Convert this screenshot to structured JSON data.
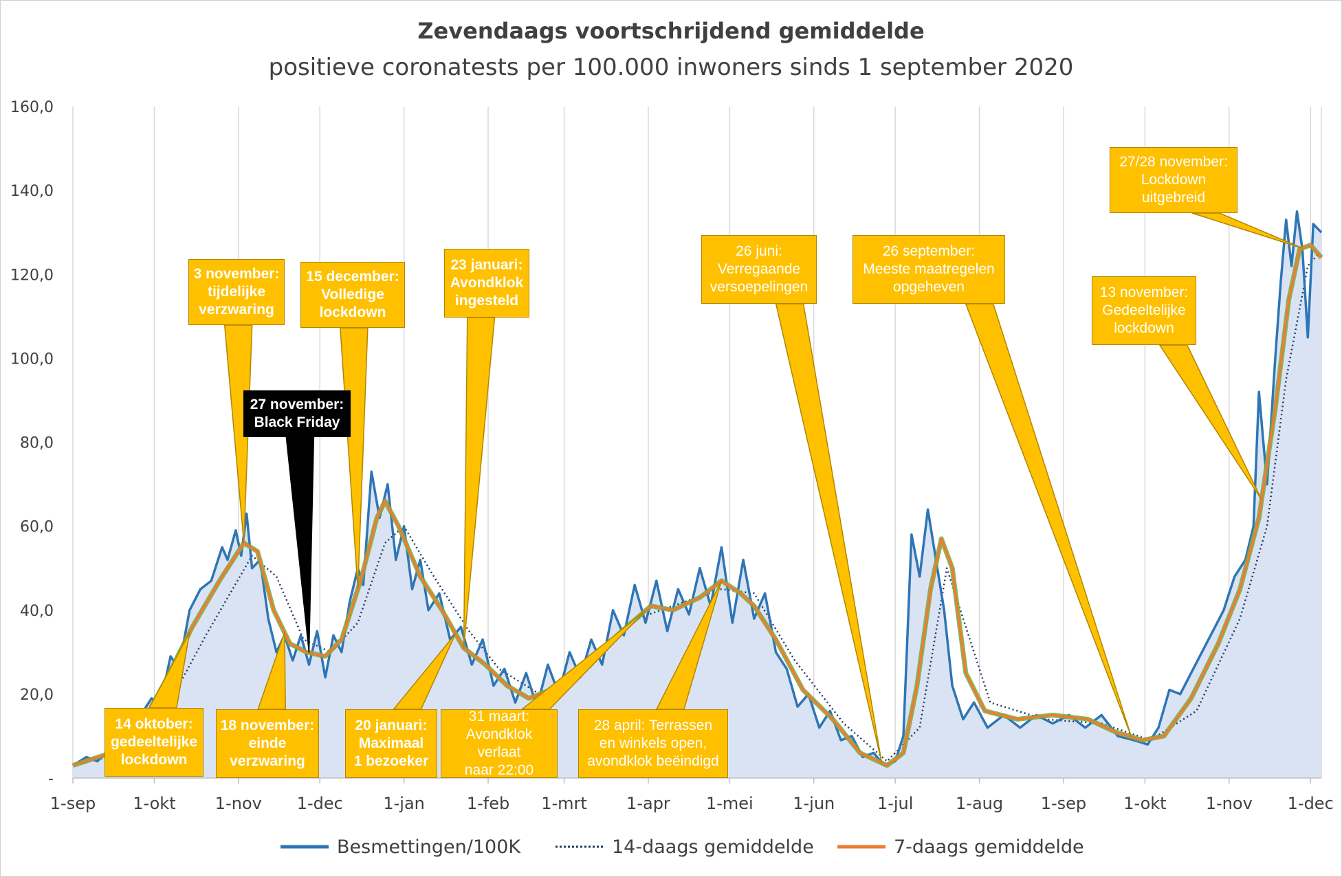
{
  "title": "Zevendaags voortschrijdend gemiddelde",
  "subtitle": "positieve coronatests per 100.000 inwoners sinds 1 september 2020",
  "colors": {
    "daily": "#2e75b6",
    "avg14": "#203864",
    "avg7": "#ed7d31",
    "avg7_outline": "#70ad47",
    "area": "#dae3f3",
    "callout_fill": "#ffc000",
    "callout_stroke": "#b08600",
    "black_callout": "#000000",
    "grid": "#d9d9d9"
  },
  "legend": {
    "daily": "Besmettingen/100K",
    "avg14": "14-daags gemiddelde",
    "avg7": "7-daags gemiddelde"
  },
  "callouts": [
    {
      "id": "c-14okt",
      "text": "14 oktober:\ngedeeltelijke\nlockdown",
      "bold": true
    },
    {
      "id": "c-3nov",
      "text": "3 november:\ntijdelijke\nverzwaring",
      "bold": true
    },
    {
      "id": "c-18nov",
      "text": "18 november:\neinde\nverzwaring",
      "bold": true
    },
    {
      "id": "c-27nov",
      "text": "27 november:\nBlack Friday",
      "bold": true
    },
    {
      "id": "c-15dec",
      "text": "15 december:\nVolledige\nlockdown",
      "bold": true
    },
    {
      "id": "c-20jan",
      "text": "20 januari:\nMaximaal\n1 bezoeker",
      "bold": true
    },
    {
      "id": "c-23jan",
      "text": "23 januari:\nAvondklok\ningesteld",
      "bold": true
    },
    {
      "id": "c-31mrt",
      "text": "31 maart:\nAvondklok verlaat\nnaar 22:00",
      "bold": false
    },
    {
      "id": "c-28apr",
      "text": "28 april: Terrassen\nen winkels open,\navondklok beëindigd",
      "bold": false
    },
    {
      "id": "c-26jun",
      "text": "26 juni:\nVerregaande\nversoepelingen",
      "bold": false
    },
    {
      "id": "c-26sep",
      "text": "26 september:\nMeeste maatregelen\nopgeheven",
      "bold": false
    },
    {
      "id": "c-13nov21",
      "text": "13 november:\nGedeeltelijke\nlockdown",
      "bold": false
    },
    {
      "id": "c-2728nov",
      "text": "27/28 november:\nLockdown\nuitgebreid",
      "bold": false
    }
  ],
  "chart_data": {
    "type": "line",
    "title": "Zevendaags voortschrijdend gemiddelde",
    "subtitle": "positieve coronatests per 100.000 inwoners sinds 1 september 2020",
    "xlabel": "",
    "ylabel": "",
    "x_tick_labels": [
      "1-sep",
      "1-okt",
      "1-nov",
      "1-dec",
      "1-jan",
      "1-feb",
      "1-mrt",
      "1-apr",
      "1-mei",
      "1-jun",
      "1-jul",
      "1-aug",
      "1-sep",
      "1-okt",
      "1-nov",
      "1-dec"
    ],
    "x_tick_dates": [
      "2020-09-01",
      "2020-10-01",
      "2020-11-01",
      "2020-12-01",
      "2021-01-01",
      "2021-02-01",
      "2021-03-01",
      "2021-04-01",
      "2021-05-01",
      "2021-06-01",
      "2021-07-01",
      "2021-08-01",
      "2021-09-01",
      "2021-10-01",
      "2021-11-01",
      "2021-12-01"
    ],
    "y_tick_labels": [
      "-",
      "20,0",
      "40,0",
      "60,0",
      "80,0",
      "100,0",
      "120,0",
      "140,0",
      "160,0"
    ],
    "ylim": [
      0,
      160
    ],
    "xlim": [
      "2020-09-01",
      "2021-12-05"
    ],
    "grid": "vertical",
    "legend_position": "bottom",
    "series": [
      {
        "name": "7-daags gemiddelde",
        "points": [
          [
            "2020-09-01",
            3
          ],
          [
            "2020-09-15",
            6
          ],
          [
            "2020-09-25",
            11
          ],
          [
            "2020-10-05",
            23
          ],
          [
            "2020-10-15",
            36
          ],
          [
            "2020-10-25",
            47
          ],
          [
            "2020-11-03",
            56
          ],
          [
            "2020-11-08",
            54
          ],
          [
            "2020-11-14",
            40
          ],
          [
            "2020-11-20",
            32
          ],
          [
            "2020-11-26",
            30
          ],
          [
            "2020-12-03",
            29
          ],
          [
            "2020-12-09",
            33
          ],
          [
            "2020-12-16",
            47
          ],
          [
            "2020-12-22",
            62
          ],
          [
            "2020-12-25",
            66
          ],
          [
            "2020-12-30",
            60
          ],
          [
            "2021-01-07",
            48
          ],
          [
            "2021-01-15",
            40
          ],
          [
            "2021-01-23",
            31
          ],
          [
            "2021-01-31",
            27
          ],
          [
            "2021-02-08",
            22
          ],
          [
            "2021-02-16",
            19
          ],
          [
            "2021-02-28",
            22
          ],
          [
            "2021-03-12",
            29
          ],
          [
            "2021-03-24",
            36
          ],
          [
            "2021-04-02",
            41
          ],
          [
            "2021-04-10",
            40
          ],
          [
            "2021-04-20",
            43
          ],
          [
            "2021-04-28",
            47
          ],
          [
            "2021-05-05",
            44
          ],
          [
            "2021-05-10",
            41
          ],
          [
            "2021-05-18",
            33
          ],
          [
            "2021-05-28",
            21
          ],
          [
            "2021-06-08",
            14
          ],
          [
            "2021-06-18",
            6
          ],
          [
            "2021-06-28",
            3
          ],
          [
            "2021-07-04",
            6
          ],
          [
            "2021-07-09",
            22
          ],
          [
            "2021-07-14",
            45
          ],
          [
            "2021-07-18",
            57
          ],
          [
            "2021-07-22",
            50
          ],
          [
            "2021-07-27",
            25
          ],
          [
            "2021-08-03",
            16
          ],
          [
            "2021-08-15",
            14
          ],
          [
            "2021-08-28",
            15
          ],
          [
            "2021-09-10",
            14
          ],
          [
            "2021-09-20",
            11
          ],
          [
            "2021-09-30",
            9
          ],
          [
            "2021-10-08",
            10
          ],
          [
            "2021-10-18",
            19
          ],
          [
            "2021-10-28",
            32
          ],
          [
            "2021-11-05",
            45
          ],
          [
            "2021-11-12",
            62
          ],
          [
            "2021-11-18",
            88
          ],
          [
            "2021-11-23",
            114
          ],
          [
            "2021-11-27",
            126
          ],
          [
            "2021-12-01",
            127
          ],
          [
            "2021-12-05",
            124
          ]
        ]
      },
      {
        "name": "14-daags gemiddelde",
        "points": [
          [
            "2020-09-01",
            3
          ],
          [
            "2020-09-20",
            6
          ],
          [
            "2020-10-05",
            16
          ],
          [
            "2020-10-20",
            34
          ],
          [
            "2020-11-06",
            53
          ],
          [
            "2020-11-15",
            48
          ],
          [
            "2020-11-25",
            33
          ],
          [
            "2020-12-05",
            30
          ],
          [
            "2020-12-15",
            37
          ],
          [
            "2020-12-25",
            56
          ],
          [
            "2021-01-01",
            60
          ],
          [
            "2021-01-12",
            48
          ],
          [
            "2021-01-25",
            35
          ],
          [
            "2021-02-05",
            26
          ],
          [
            "2021-02-20",
            20
          ],
          [
            "2021-03-10",
            26
          ],
          [
            "2021-03-28",
            38
          ],
          [
            "2021-04-10",
            41
          ],
          [
            "2021-04-28",
            45
          ],
          [
            "2021-05-10",
            44
          ],
          [
            "2021-05-25",
            28
          ],
          [
            "2021-06-12",
            13
          ],
          [
            "2021-06-28",
            4
          ],
          [
            "2021-07-10",
            12
          ],
          [
            "2021-07-20",
            50
          ],
          [
            "2021-07-26",
            38
          ],
          [
            "2021-08-05",
            18
          ],
          [
            "2021-08-25",
            14
          ],
          [
            "2021-09-15",
            13
          ],
          [
            "2021-10-03",
            9
          ],
          [
            "2021-10-20",
            16
          ],
          [
            "2021-11-05",
            38
          ],
          [
            "2021-11-15",
            60
          ],
          [
            "2021-11-22",
            95
          ],
          [
            "2021-11-30",
            122
          ],
          [
            "2021-12-04",
            125
          ]
        ]
      },
      {
        "name": "Besmettingen/100K",
        "points": [
          [
            "2020-09-01",
            3
          ],
          [
            "2020-09-06",
            5
          ],
          [
            "2020-09-10",
            4
          ],
          [
            "2020-09-15",
            7
          ],
          [
            "2020-09-20",
            9
          ],
          [
            "2020-09-25",
            14
          ],
          [
            "2020-09-30",
            19
          ],
          [
            "2020-10-03",
            17
          ],
          [
            "2020-10-07",
            29
          ],
          [
            "2020-10-10",
            26
          ],
          [
            "2020-10-14",
            40
          ],
          [
            "2020-10-18",
            45
          ],
          [
            "2020-10-22",
            47
          ],
          [
            "2020-10-26",
            55
          ],
          [
            "2020-10-28",
            52
          ],
          [
            "2020-10-31",
            59
          ],
          [
            "2020-11-02",
            53
          ],
          [
            "2020-11-04",
            63
          ],
          [
            "2020-11-06",
            50
          ],
          [
            "2020-11-09",
            52
          ],
          [
            "2020-11-12",
            38
          ],
          [
            "2020-11-15",
            30
          ],
          [
            "2020-11-18",
            34
          ],
          [
            "2020-11-21",
            28
          ],
          [
            "2020-11-24",
            34
          ],
          [
            "2020-11-27",
            27
          ],
          [
            "2020-11-30",
            35
          ],
          [
            "2020-12-03",
            24
          ],
          [
            "2020-12-06",
            34
          ],
          [
            "2020-12-09",
            30
          ],
          [
            "2020-12-12",
            42
          ],
          [
            "2020-12-15",
            50
          ],
          [
            "2020-12-17",
            46
          ],
          [
            "2020-12-20",
            73
          ],
          [
            "2020-12-23",
            62
          ],
          [
            "2020-12-26",
            70
          ],
          [
            "2020-12-29",
            52
          ],
          [
            "2021-01-01",
            60
          ],
          [
            "2021-01-04",
            45
          ],
          [
            "2021-01-07",
            52
          ],
          [
            "2021-01-10",
            40
          ],
          [
            "2021-01-14",
            44
          ],
          [
            "2021-01-18",
            33
          ],
          [
            "2021-01-22",
            36
          ],
          [
            "2021-01-26",
            27
          ],
          [
            "2021-01-30",
            33
          ],
          [
            "2021-02-03",
            22
          ],
          [
            "2021-02-07",
            26
          ],
          [
            "2021-02-11",
            18
          ],
          [
            "2021-02-15",
            25
          ],
          [
            "2021-02-19",
            17
          ],
          [
            "2021-02-23",
            27
          ],
          [
            "2021-02-27",
            20
          ],
          [
            "2021-03-03",
            30
          ],
          [
            "2021-03-07",
            24
          ],
          [
            "2021-03-11",
            33
          ],
          [
            "2021-03-15",
            27
          ],
          [
            "2021-03-19",
            40
          ],
          [
            "2021-03-23",
            34
          ],
          [
            "2021-03-27",
            46
          ],
          [
            "2021-03-31",
            37
          ],
          [
            "2021-04-04",
            47
          ],
          [
            "2021-04-08",
            35
          ],
          [
            "2021-04-12",
            45
          ],
          [
            "2021-04-16",
            39
          ],
          [
            "2021-04-20",
            50
          ],
          [
            "2021-04-24",
            41
          ],
          [
            "2021-04-28",
            55
          ],
          [
            "2021-05-02",
            37
          ],
          [
            "2021-05-06",
            52
          ],
          [
            "2021-05-10",
            38
          ],
          [
            "2021-05-14",
            44
          ],
          [
            "2021-05-18",
            30
          ],
          [
            "2021-05-22",
            26
          ],
          [
            "2021-05-26",
            17
          ],
          [
            "2021-05-30",
            20
          ],
          [
            "2021-06-03",
            12
          ],
          [
            "2021-06-07",
            16
          ],
          [
            "2021-06-11",
            9
          ],
          [
            "2021-06-15",
            10
          ],
          [
            "2021-06-19",
            5
          ],
          [
            "2021-06-23",
            6
          ],
          [
            "2021-06-27",
            3
          ],
          [
            "2021-07-01",
            4
          ],
          [
            "2021-07-04",
            10
          ],
          [
            "2021-07-07",
            58
          ],
          [
            "2021-07-10",
            48
          ],
          [
            "2021-07-13",
            64
          ],
          [
            "2021-07-16",
            52
          ],
          [
            "2021-07-19",
            40
          ],
          [
            "2021-07-22",
            22
          ],
          [
            "2021-07-26",
            14
          ],
          [
            "2021-07-30",
            18
          ],
          [
            "2021-08-04",
            12
          ],
          [
            "2021-08-10",
            15
          ],
          [
            "2021-08-16",
            12
          ],
          [
            "2021-08-22",
            15
          ],
          [
            "2021-08-28",
            13
          ],
          [
            "2021-09-03",
            15
          ],
          [
            "2021-09-09",
            12
          ],
          [
            "2021-09-15",
            15
          ],
          [
            "2021-09-21",
            10
          ],
          [
            "2021-09-27",
            9
          ],
          [
            "2021-10-02",
            8
          ],
          [
            "2021-10-06",
            12
          ],
          [
            "2021-10-10",
            21
          ],
          [
            "2021-10-14",
            20
          ],
          [
            "2021-10-18",
            25
          ],
          [
            "2021-10-22",
            30
          ],
          [
            "2021-10-26",
            35
          ],
          [
            "2021-10-30",
            40
          ],
          [
            "2021-11-03",
            48
          ],
          [
            "2021-11-07",
            52
          ],
          [
            "2021-11-10",
            60
          ],
          [
            "2021-11-12",
            92
          ],
          [
            "2021-11-15",
            70
          ],
          [
            "2021-11-18",
            100
          ],
          [
            "2021-11-20",
            118
          ],
          [
            "2021-11-22",
            133
          ],
          [
            "2021-11-24",
            122
          ],
          [
            "2021-11-26",
            135
          ],
          [
            "2021-11-28",
            126
          ],
          [
            "2021-11-30",
            105
          ],
          [
            "2021-12-02",
            132
          ],
          [
            "2021-12-05",
            130
          ]
        ]
      }
    ]
  }
}
